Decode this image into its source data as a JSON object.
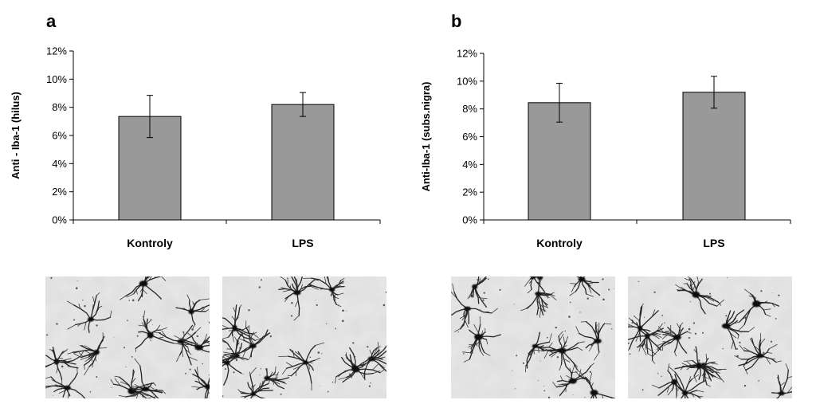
{
  "chart_data": [
    {
      "type": "bar",
      "panel_label": "a",
      "title": "",
      "xlabel": "",
      "ylabel": "Anti - Iba-1 (hilus)",
      "categories": [
        "Kontroly",
        "LPS"
      ],
      "values": [
        7.35,
        8.2
      ],
      "error": [
        1.5,
        0.85
      ],
      "unit": "%",
      "ylim": [
        0,
        12
      ],
      "yticks": [
        "0%",
        "2%",
        "4%",
        "6%",
        "8%",
        "10%",
        "12%"
      ],
      "bar_color": "#999999",
      "grid": false,
      "legend": "none"
    },
    {
      "type": "bar",
      "panel_label": "b",
      "title": "",
      "xlabel": "",
      "ylabel": "Anti-Iba-1 (subs.nigra)",
      "categories": [
        "Kontroly",
        "LPS"
      ],
      "values": [
        8.45,
        9.2
      ],
      "error": [
        1.4,
        1.15
      ],
      "unit": "%",
      "ylim": [
        0,
        12
      ],
      "yticks": [
        "0%",
        "2%",
        "4%",
        "6%",
        "8%",
        "10%",
        "12%"
      ],
      "bar_color": "#999999",
      "grid": false,
      "legend": "none"
    }
  ],
  "micrographs": [
    {
      "panel": "a",
      "group": "Kontroly",
      "stain": "Iba-1 microglia"
    },
    {
      "panel": "a",
      "group": "LPS",
      "stain": "Iba-1 microglia"
    },
    {
      "panel": "b",
      "group": "Kontroly",
      "stain": "Iba-1 microglia"
    },
    {
      "panel": "b",
      "group": "LPS",
      "stain": "Iba-1 microglia"
    }
  ]
}
